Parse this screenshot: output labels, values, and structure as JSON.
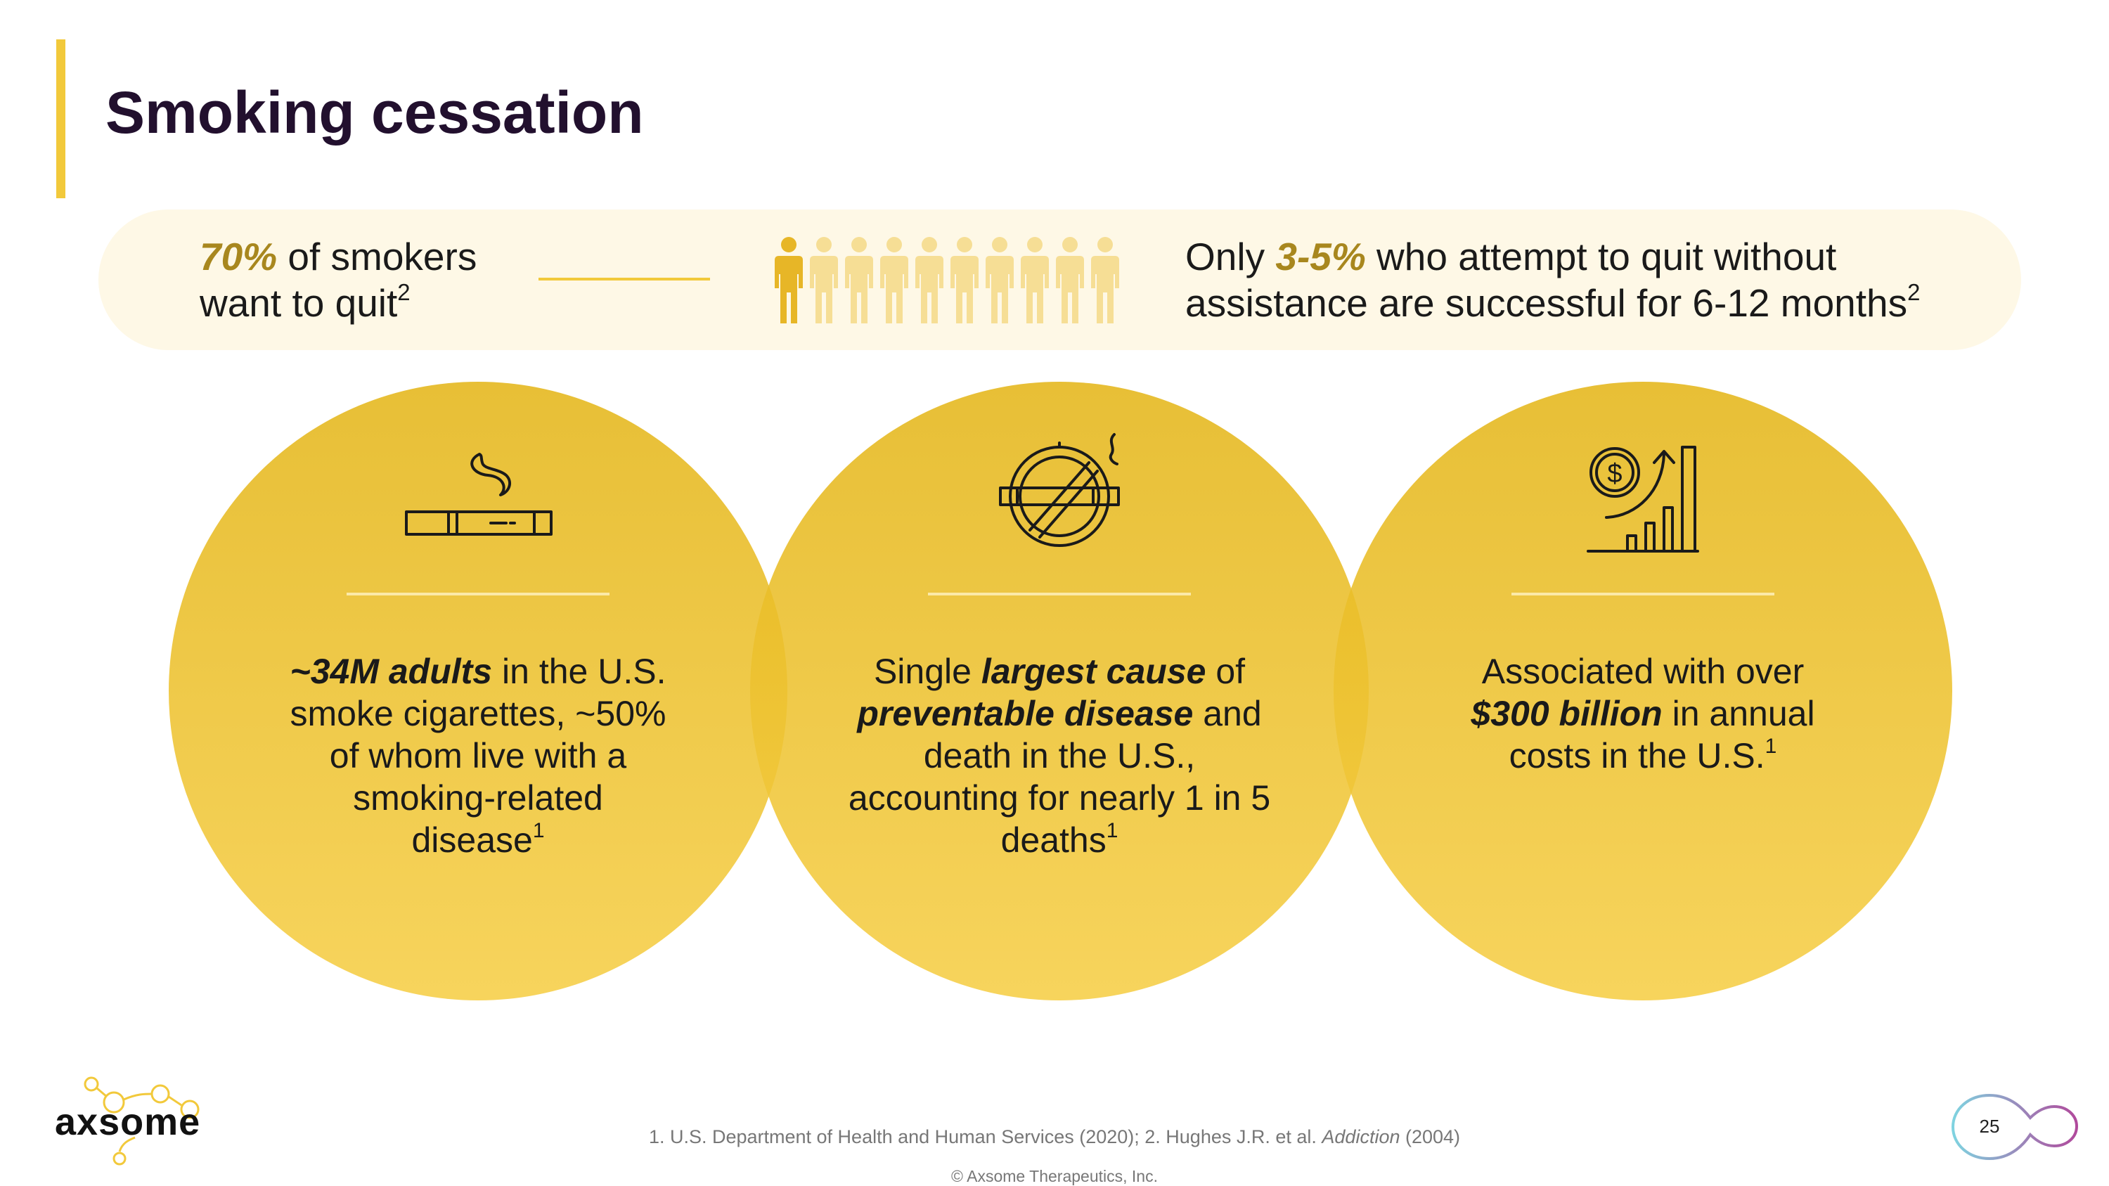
{
  "title": "Smoking cessation",
  "banner": {
    "left": {
      "highlight": "70%",
      "text1": " of smokers",
      "text2": "want to quit",
      "sup": "2"
    },
    "right": {
      "prefix": "Only ",
      "highlight": "3-5%",
      "text1": " who attempt to quit without",
      "text2": "assistance are successful for 6-12 months",
      "sup": "2"
    },
    "people_icon": "people-row-icon",
    "people_count": 10,
    "people_highlighted": 1
  },
  "circles": [
    {
      "icon": "cigarette-icon",
      "bold": "~34M adults",
      "line1_rest": " in the U.S.",
      "line2": "smoke cigarettes, ~50%",
      "line3": "of whom live with a",
      "line4": "smoking-related",
      "line5": "disease",
      "sup": "1"
    },
    {
      "icon": "no-smoking-icon",
      "line1_pre": "Single ",
      "bold1": "largest cause",
      "line1_post": " of",
      "bold2": "preventable disease",
      "line2_post": " and",
      "line3": "death in the U.S.,",
      "line4": "accounting for nearly 1 in 5",
      "line5": "deaths",
      "sup": "1"
    },
    {
      "icon": "dollar-growth-icon",
      "line1": "Associated with over",
      "bold": "$300 billion",
      "line2_post": " in annual",
      "line3": "costs in the U.S.",
      "sup": "1"
    }
  ],
  "footer": {
    "logo": "axsome",
    "footnote_pre": "1. U.S. Department of Health and Human Services (2020); 2. Hughes J.R. et al. ",
    "footnote_italic": "Addiction",
    "footnote_post": " (2004)",
    "copyright": "© Axsome Therapeutics, Inc.",
    "page_number": "25"
  },
  "colors": {
    "accent": "#F2C93B",
    "highlight_text": "#A8871E",
    "title": "#22102E",
    "banner_bg": "#FEF8E6"
  }
}
